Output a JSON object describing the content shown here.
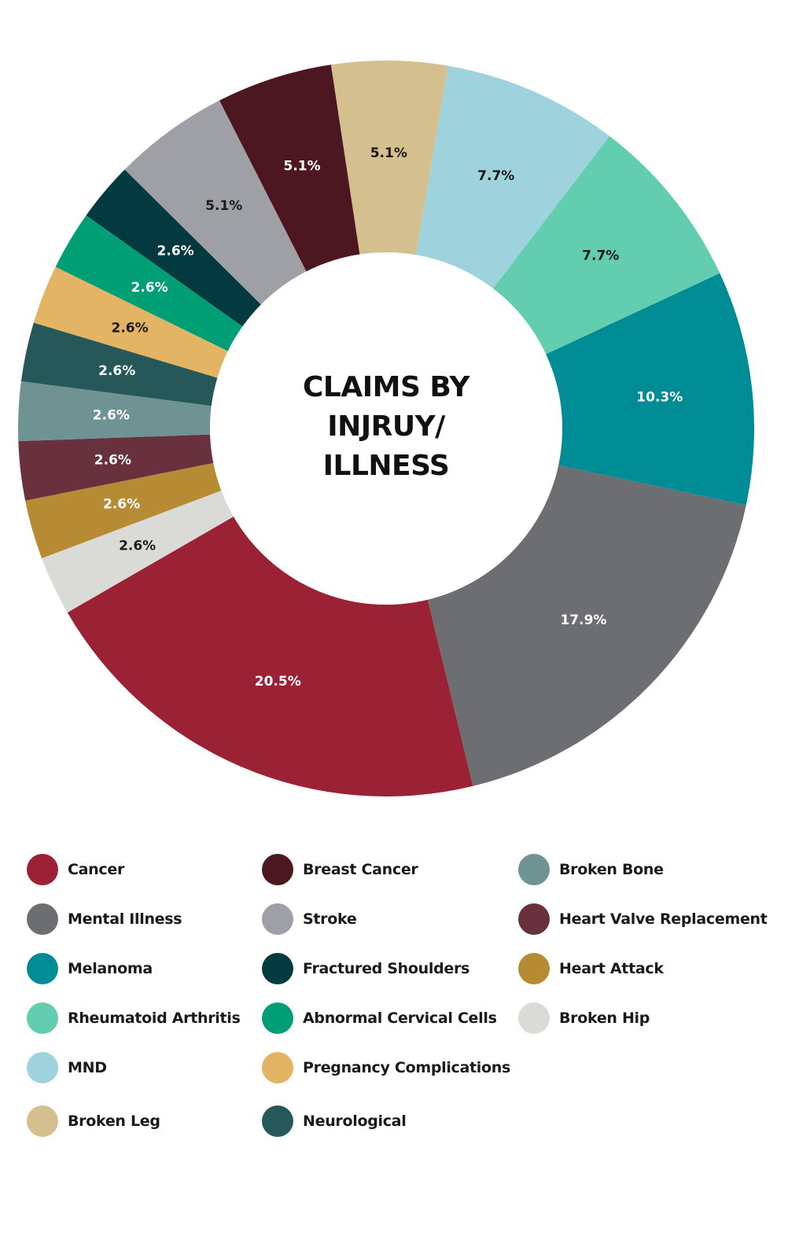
{
  "chart_data": {
    "type": "pie",
    "variant": "donut",
    "title_lines": [
      "CLAIMS BY",
      "INJRUY/",
      "ILLNESS"
    ],
    "slices": [
      {
        "name": "Cancer",
        "value": 20.5,
        "label": "20.5%",
        "color": "#9b2135",
        "label_color": "#ffffff"
      },
      {
        "name": "Mental Illness",
        "value": 17.9,
        "label": "17.9%",
        "color": "#6d6e72",
        "label_color": "#ffffff"
      },
      {
        "name": "Melanoma",
        "value": 10.3,
        "label": "10.3%",
        "color": "#008c95",
        "label_color": "#ffffff"
      },
      {
        "name": "Rheumatoid Arthritis",
        "value": 7.7,
        "label": "7.7%",
        "color": "#63cdb0",
        "label_color": "#1a1a1a"
      },
      {
        "name": "MND",
        "value": 7.7,
        "label": "7.7%",
        "color": "#9ed3dd",
        "label_color": "#1a1a1a"
      },
      {
        "name": "Broken Leg",
        "value": 5.1,
        "label": "5.1%",
        "color": "#d4bf8e",
        "label_color": "#1a1a1a"
      },
      {
        "name": "Breast Cancer",
        "value": 5.1,
        "label": "5.1%",
        "color": "#4c1720",
        "label_color": "#ffffff"
      },
      {
        "name": "Stroke",
        "value": 5.1,
        "label": "5.1%",
        "color": "#9ea0a6",
        "label_color": "#1a1a1a"
      },
      {
        "name": "Fractured Shoulders",
        "value": 2.6,
        "label": "2.6%",
        "color": "#023a40",
        "label_color": "#ffffff"
      },
      {
        "name": "Abnormal Cervical Cells",
        "value": 2.6,
        "label": "2.6%",
        "color": "#009e74",
        "label_color": "#ffffff"
      },
      {
        "name": "Pregnancy Complications",
        "value": 2.6,
        "label": "2.6%",
        "color": "#e2b463",
        "label_color": "#1a1a1a"
      },
      {
        "name": "Neurological",
        "value": 2.6,
        "label": "2.6%",
        "color": "#26585a",
        "label_color": "#ffffff"
      },
      {
        "name": "Broken Bone",
        "value": 2.6,
        "label": "2.6%",
        "color": "#6e9392",
        "label_color": "#ffffff"
      },
      {
        "name": "Heart Valve Replacement",
        "value": 2.6,
        "label": "2.6%",
        "color": "#69313e",
        "label_color": "#ffffff"
      },
      {
        "name": "Heart Attack",
        "value": 2.6,
        "label": "2.6%",
        "color": "#b68b34",
        "label_color": "#ffffff"
      },
      {
        "name": "Broken Hip",
        "value": 2.6,
        "label": "2.6%",
        "color": "#dadad6",
        "label_color": "#1a1a1a"
      }
    ],
    "legend_placement": "bottom",
    "legend_columns": [
      [
        "Cancer",
        "Mental Illness",
        "Melanoma",
        "Rheumatoid Arthritis",
        "MND",
        "Broken Leg"
      ],
      [
        "Breast Cancer",
        "Stroke",
        "Fractured Shoulders",
        "Abnormal Cervical Cells",
        "Pregnancy Complications",
        "Neurological"
      ],
      [
        "Broken Bone",
        "Heart Valve Replacement",
        "Heart Attack",
        "Broken Hip"
      ]
    ]
  }
}
